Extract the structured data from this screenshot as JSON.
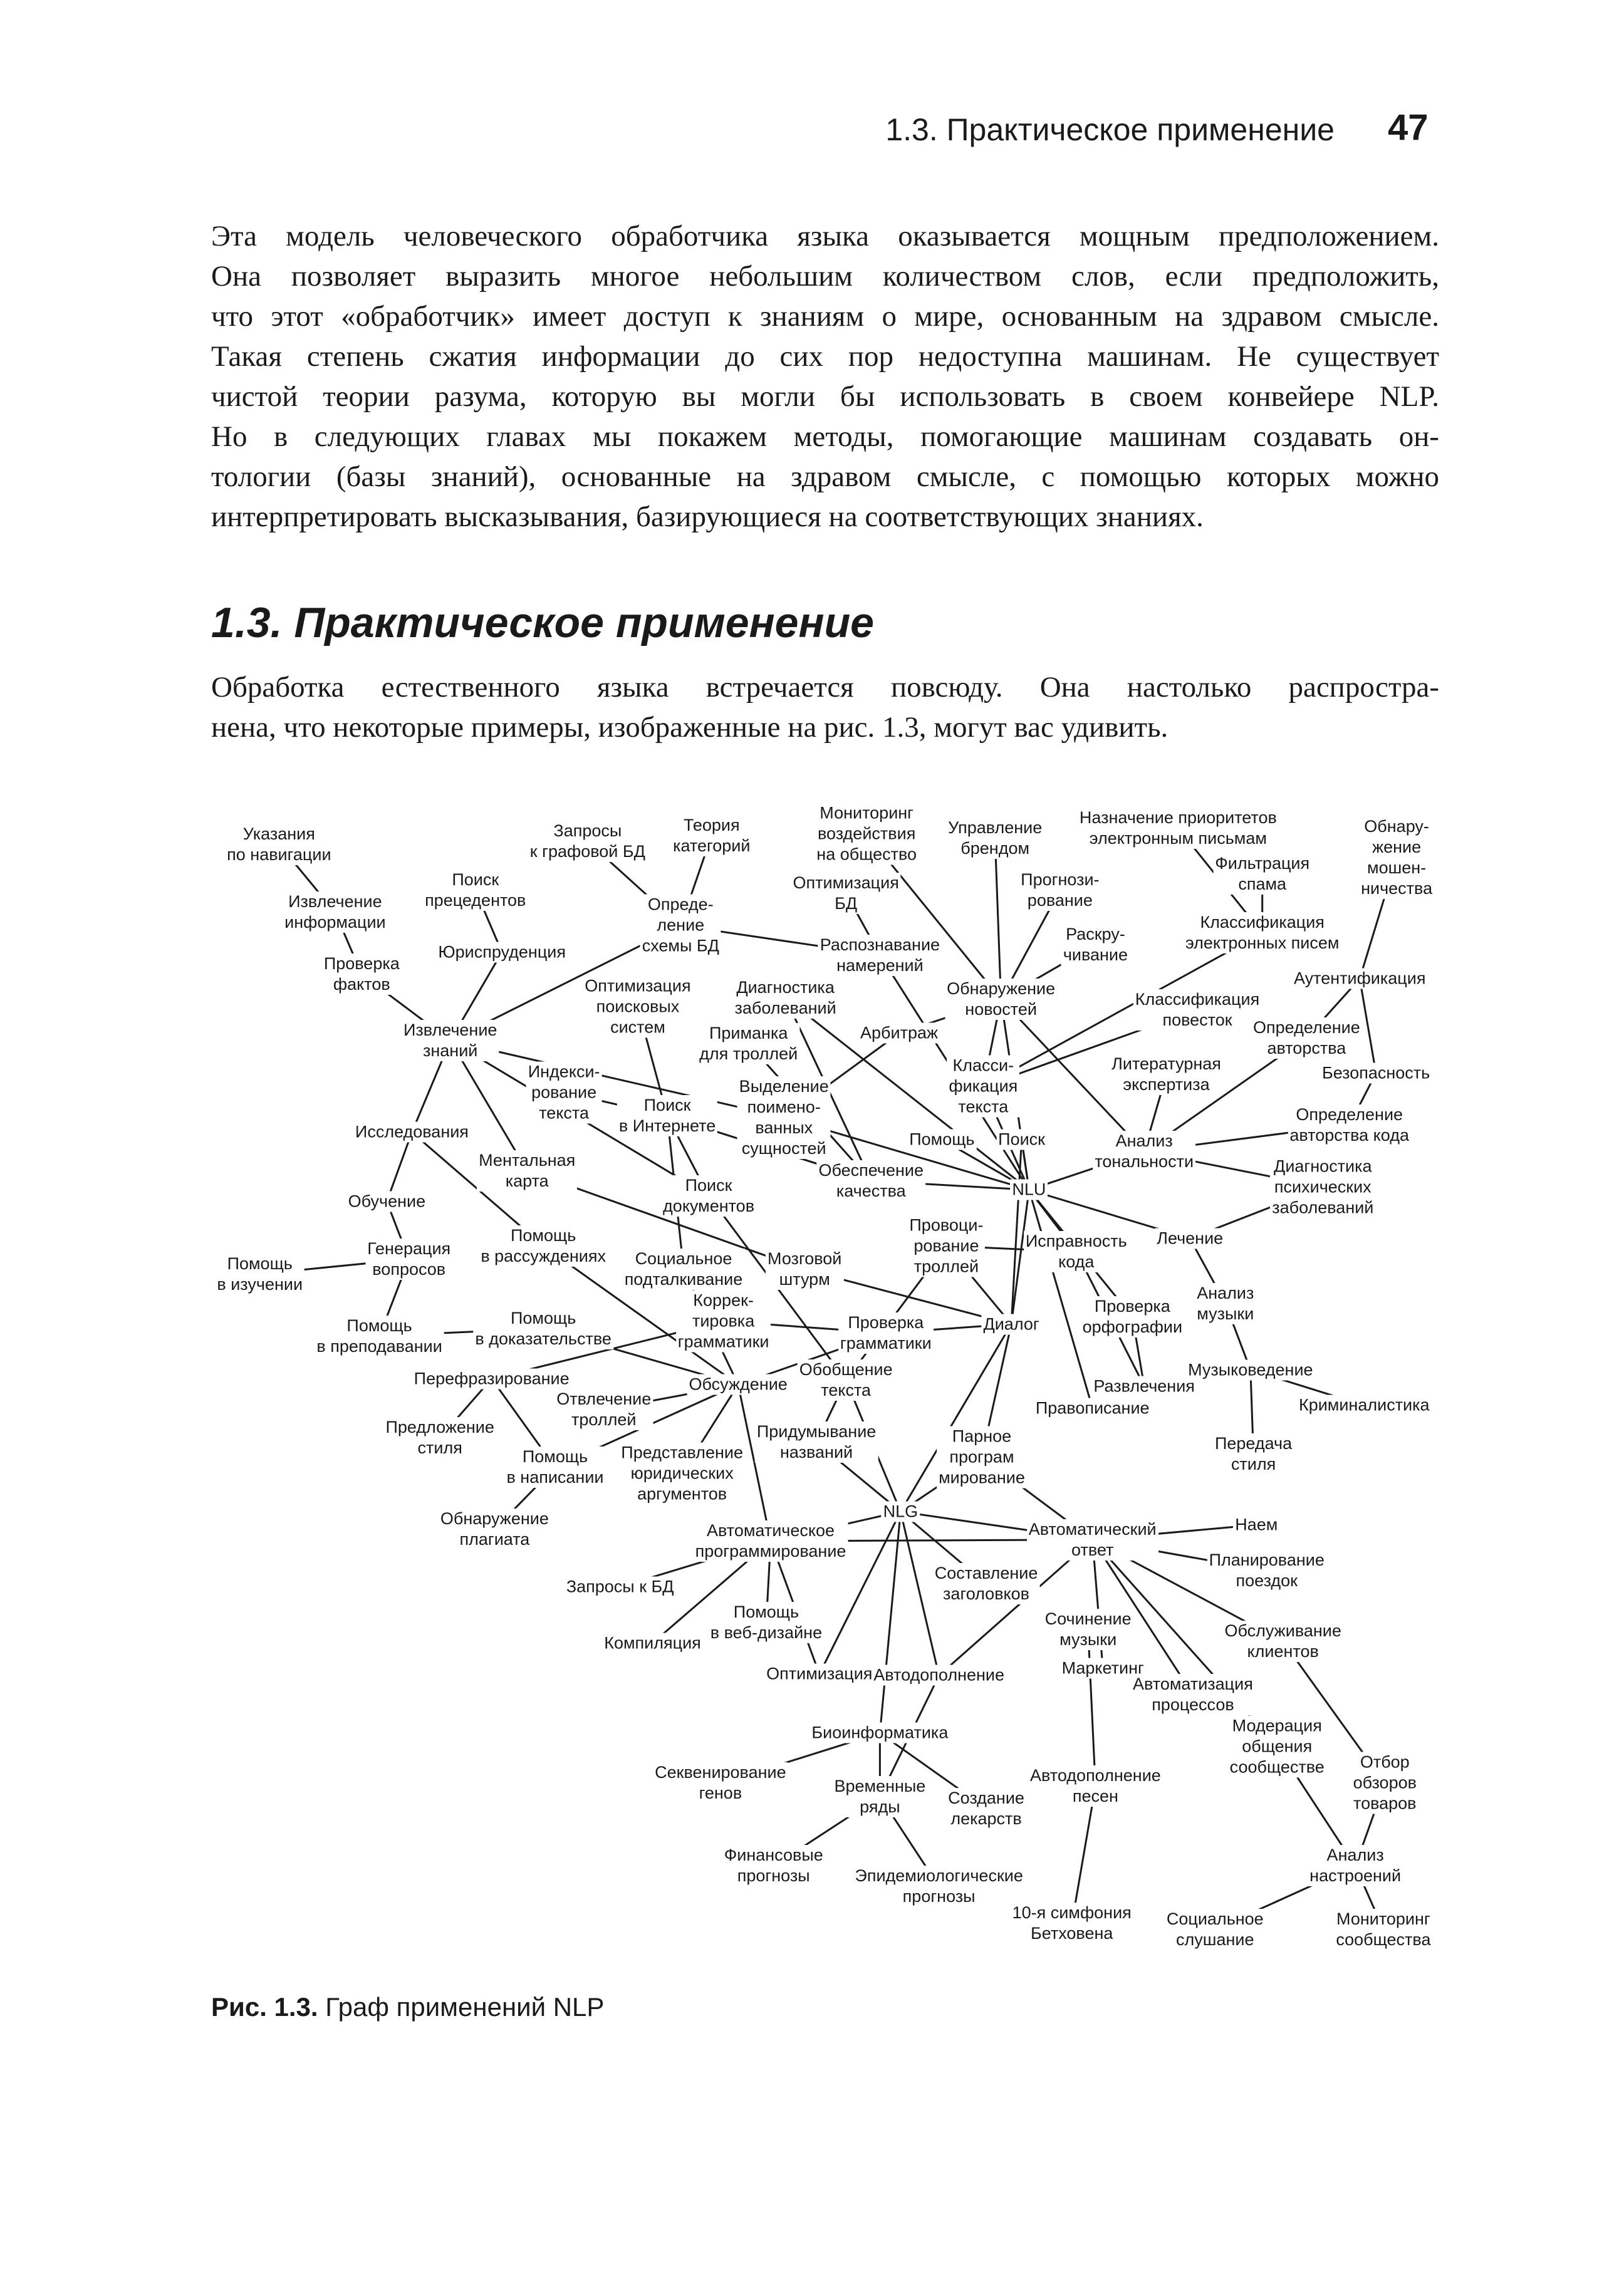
{
  "header": {
    "running_title": "1.3. Практическое применение",
    "page_number": "47"
  },
  "paragraph1": [
    "Эта модель человеческого обработчика языка оказывается мощным предположением.",
    "Она позволяет выразить многое небольшим количеством слов, если предположить,",
    "что этот «обработчик» имеет доступ к знаниям о мире, основанным на здравом смысле.",
    "Такая степень сжатия информации до сих пор недоступна машинам. Не существует",
    "чистой теории разума, которую вы могли бы использовать в своем конвейере NLP.",
    "Но в следующих главах мы покажем методы, помогающие машинам создавать он-",
    "тологии (базы знаний), основанные на здравом смысле, с помощью которых можно",
    "интерпретировать высказывания, базирующиеся на соответствующих знаниях."
  ],
  "section_heading": "1.3. Практическое применение",
  "paragraph2": [
    "Обработка естественного языка встречается повсюду. Она настолько распростра-",
    "нена, что некоторые примеры, изображенные на рис. 1.3, могут вас удивить."
  ],
  "figure": {
    "caption_label": "Рис. 1.3.",
    "caption_text": " Граф применений NLP",
    "nodes": [
      "Указания\nпо навигации",
      "Извлечение\nинформации",
      "Проверка\nфактов",
      "Поиск\nпрецедентов",
      "Юриспруденция",
      "Запросы\nк графовой БД",
      "Теория\nкатегорий",
      "Опреде-\nление\nсхемы БД",
      "Мониторинг\nвоздействия\nна общество",
      "Управление\nбрендом",
      "Назначение приоритетов\nэлектронным письмам",
      "Обнару-\nжение\nмошен-\nничества",
      "Оптимизация\nБД",
      "Прогнози-\nрование",
      "Фильтрация\nспама",
      "Распознавание\nнамерений",
      "Классификация\nэлектронных писем",
      "Раскру-\nчивание",
      "Обнаружение\nновостей",
      "Аутентификация",
      "Оптимизация\nпоисковых\nсистем",
      "Диагностика\nзаболеваний",
      "Извлечение\nзнаний",
      "Приманка\nдля троллей",
      "Арбитраж",
      "Классификация\nповесток",
      "Определение\nавторства",
      "Литературная\nэкспертиза",
      "Безопасность",
      "Индекси-\nрование\nтекста",
      "Поиск\nв Интернете",
      "Выделение\nпоимено-\nванных\nсущностей",
      "Класси-\nфикация\nтекста",
      "Определение\nавторства кода",
      "Исследования",
      "Помощь",
      "Поиск",
      "Анализ\nтональности",
      "Ментальная\nкарта",
      "Обеспечение\nкачества",
      "NLU",
      "Поиск\nдокументов",
      "Диагностика\nпсихических\nзаболеваний",
      "Обучение",
      "Помощь\nв рассуждениях",
      "Провоци-\nрование\nтроллей",
      "Исправность\nкода",
      "Лечение",
      "Генерация\nвопросов",
      "Помощь\nв изучении",
      "Социальное\nподталкивание",
      "Мозговой\nштурм",
      "Анализ\nмузыки",
      "Коррек-\nтировка\nграмматики",
      "Проверка\nграмматики",
      "Диалог",
      "Проверка\nорфографии",
      "Помощь\nв преподавании",
      "Помощь\nв доказательстве",
      "Музыковедение",
      "Перефразирование",
      "Обсуждение",
      "Обобщение\nтекста",
      "Развлечения",
      "Криминалистика",
      "Отвлечение\nтроллей",
      "Правописание",
      "Предложение\nстиля",
      "Придумывание\nназваний",
      "Парное\nпрограм\nмирование",
      "Передача\nстиля",
      "Помощь\nв написании",
      "Представление\nюридических\nаргументов",
      "Обнаружение\nплагиата",
      "NLG",
      "Наем",
      "Автоматическое\nпрограммирование",
      "Автоматический\nответ",
      "Планирование\nпоездок",
      "Запросы к БД",
      "Составление\nзаголовков",
      "Помощь\nв веб-дизайне",
      "Компиляция",
      "Сочинение\nмузыки",
      "Обслуживание\nклиентов",
      "Оптимизация",
      "Автодополнение",
      "Маркетинг",
      "Автоматизация\nпроцессов",
      "Биоинформатика",
      "Модерация\nобщения\nсообществе",
      "Отбор\nобзоров\nтоваров",
      "Секвенирование\nгенов",
      "Временные\nряды",
      "Создание\nлекарств",
      "Автодополнение\nпесен",
      "Анализ\nнастроений",
      "Финансовые\nпрогнозы",
      "Эпидемиологические\nпрогнозы",
      "10-я симфония\nБетховена",
      "Социальное\nслушание",
      "Мониторинг\nсообщества"
    ],
    "edges": [
      [
        0,
        1
      ],
      [
        1,
        2
      ],
      [
        2,
        22
      ],
      [
        3,
        4
      ],
      [
        4,
        22
      ],
      [
        5,
        7
      ],
      [
        6,
        7
      ],
      [
        7,
        22
      ],
      [
        7,
        15
      ],
      [
        12,
        15
      ],
      [
        22,
        31
      ],
      [
        22,
        34
      ],
      [
        22,
        38
      ],
      [
        22,
        41
      ],
      [
        34,
        43
      ],
      [
        34,
        44
      ],
      [
        43,
        48
      ],
      [
        48,
        49
      ],
      [
        48,
        57
      ],
      [
        57,
        58
      ],
      [
        58,
        61
      ],
      [
        20,
        30
      ],
      [
        29,
        30
      ],
      [
        30,
        41
      ],
      [
        30,
        39
      ],
      [
        38,
        51
      ],
      [
        41,
        62
      ],
      [
        30,
        50
      ],
      [
        50,
        61
      ],
      [
        44,
        61
      ],
      [
        53,
        54
      ],
      [
        60,
        53
      ],
      [
        54,
        61
      ],
      [
        61,
        65
      ],
      [
        61,
        71
      ],
      [
        61,
        72
      ],
      [
        61,
        76
      ],
      [
        60,
        67
      ],
      [
        60,
        71
      ],
      [
        71,
        73
      ],
      [
        62,
        68
      ],
      [
        62,
        74
      ],
      [
        68,
        74
      ],
      [
        74,
        76
      ],
      [
        74,
        77
      ],
      [
        74,
        80
      ],
      [
        74,
        85
      ],
      [
        74,
        86
      ],
      [
        74,
        89
      ],
      [
        76,
        79
      ],
      [
        76,
        81
      ],
      [
        76,
        82
      ],
      [
        76,
        85
      ],
      [
        76,
        77
      ],
      [
        77,
        75
      ],
      [
        77,
        78
      ],
      [
        77,
        84
      ],
      [
        77,
        88
      ],
      [
        77,
        87
      ],
      [
        77,
        90
      ],
      [
        77,
        86
      ],
      [
        69,
        74
      ],
      [
        69,
        55
      ],
      [
        69,
        77
      ],
      [
        55,
        40
      ],
      [
        55,
        54
      ],
      [
        55,
        45
      ],
      [
        55,
        51
      ],
      [
        55,
        74
      ],
      [
        40,
        31
      ],
      [
        40,
        39
      ],
      [
        40,
        35
      ],
      [
        40,
        36
      ],
      [
        40,
        32
      ],
      [
        40,
        18
      ],
      [
        40,
        37
      ],
      [
        40,
        21
      ],
      [
        40,
        46
      ],
      [
        40,
        56
      ],
      [
        40,
        47
      ],
      [
        37,
        27
      ],
      [
        37,
        26
      ],
      [
        37,
        33
      ],
      [
        37,
        42
      ],
      [
        37,
        18
      ],
      [
        18,
        8
      ],
      [
        18,
        9
      ],
      [
        18,
        13
      ],
      [
        18,
        17
      ],
      [
        18,
        24
      ],
      [
        32,
        16
      ],
      [
        32,
        25
      ],
      [
        19,
        11
      ],
      [
        19,
        26
      ],
      [
        19,
        28
      ],
      [
        28,
        33
      ],
      [
        47,
        42
      ],
      [
        47,
        52
      ],
      [
        52,
        59
      ],
      [
        59,
        70
      ],
      [
        59,
        64
      ],
      [
        46,
        63
      ],
      [
        63,
        56
      ],
      [
        66,
        40
      ],
      [
        86,
        93
      ],
      [
        89,
        92
      ],
      [
        89,
        93
      ],
      [
        89,
        94
      ],
      [
        93,
        97
      ],
      [
        93,
        98
      ],
      [
        83,
        95
      ],
      [
        95,
        99
      ],
      [
        90,
        96
      ],
      [
        91,
        96
      ],
      [
        96,
        100
      ],
      [
        96,
        101
      ],
      [
        84,
        91
      ],
      [
        10,
        16
      ],
      [
        14,
        16
      ],
      [
        15,
        40
      ],
      [
        23,
        39
      ],
      [
        21,
        39
      ],
      [
        24,
        31
      ],
      [
        45,
        62
      ],
      [
        45,
        46
      ],
      [
        36,
        55
      ],
      [
        18,
        32
      ]
    ]
  }
}
